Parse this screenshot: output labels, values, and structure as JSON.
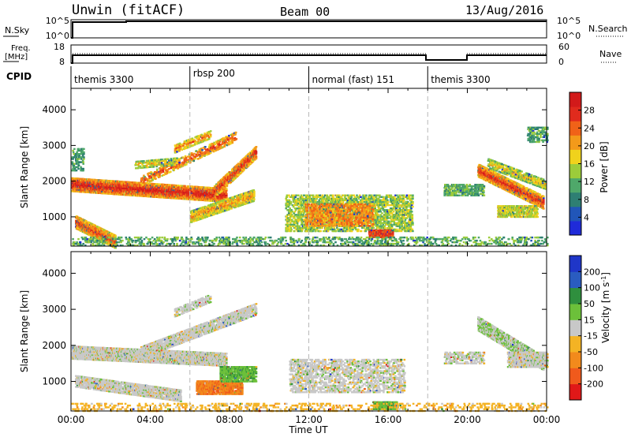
{
  "header": {
    "title": "Unwin (fitACF)",
    "beam": "Beam 00",
    "date": "13/Aug/2016"
  },
  "panels": {
    "nsky": {
      "label": "N.Sky",
      "ticks_left": [
        "10^5",
        "10^0"
      ],
      "ticks_right": [
        "10^5",
        "10^0"
      ],
      "right_label": "N.Search"
    },
    "freq": {
      "label_line1": "Freq.",
      "label_line2": "[MHz]",
      "ticks_left": [
        "18",
        "8"
      ],
      "ticks_right": [
        "60",
        "0"
      ],
      "right_label": "Nave"
    },
    "cpid": {
      "label": "CPID",
      "segments": [
        {
          "start_h": 0,
          "end_h": 6,
          "label": "themis 3300"
        },
        {
          "start_h": 6,
          "end_h": 12,
          "label": "rbsp 200"
        },
        {
          "start_h": 12,
          "end_h": 18,
          "label": "normal (fast) 151"
        },
        {
          "start_h": 18,
          "end_h": 24,
          "label": "themis 3300"
        }
      ]
    }
  },
  "chart_data": [
    {
      "type": "heatmap",
      "name": "Power",
      "ylabel": "Slant Range [km]",
      "ylim": [
        180,
        4600
      ],
      "yticks": [
        1000,
        2000,
        3000,
        4000
      ],
      "xlim": [
        0,
        24
      ],
      "colorbar": {
        "label": "Power [dB]",
        "ticks": [
          4,
          8,
          12,
          16,
          20,
          24,
          28
        ],
        "range": [
          0,
          32
        ],
        "colors": [
          "#1f2bd9",
          "#2156b8",
          "#2e7f73",
          "#4fa86a",
          "#9ccc3a",
          "#f0d21c",
          "#f39a1a",
          "#f06218",
          "#e02b1d",
          "#d21a1a"
        ]
      },
      "features": [
        {
          "kind": "band",
          "t0": 0.0,
          "t1": 7.8,
          "r0": 1900,
          "r1": 1600,
          "w": 180,
          "lvl": 0.95,
          "density": 0.85
        },
        {
          "kind": "band",
          "t0": 7.2,
          "t1": 9.3,
          "r0": 1700,
          "r1": 2800,
          "w": 160,
          "lvl": 0.9,
          "density": 0.7
        },
        {
          "kind": "band",
          "t0": 3.5,
          "t1": 8.3,
          "r0": 2000,
          "r1": 3250,
          "w": 120,
          "lvl": 0.85,
          "density": 0.35
        },
        {
          "kind": "band",
          "t0": 5.2,
          "t1": 7.0,
          "r0": 2900,
          "r1": 3300,
          "w": 100,
          "lvl": 0.75,
          "density": 0.45
        },
        {
          "kind": "band",
          "t0": 3.2,
          "t1": 5.3,
          "r0": 2450,
          "r1": 2550,
          "w": 90,
          "lvl": 0.6,
          "density": 0.45
        },
        {
          "kind": "band",
          "t0": 0.2,
          "t1": 2.2,
          "r0": 850,
          "r1": 300,
          "w": 170,
          "lvl": 0.85,
          "density": 0.8
        },
        {
          "kind": "band",
          "t0": 6.0,
          "t1": 9.2,
          "r0": 1000,
          "r1": 1600,
          "w": 150,
          "lvl": 0.7,
          "density": 0.65
        },
        {
          "kind": "blob",
          "t0": 10.8,
          "t1": 17.2,
          "r0": 600,
          "r1": 1600,
          "lvl": 0.45,
          "density": 0.35
        },
        {
          "kind": "blob",
          "t0": 11.8,
          "t1": 15.2,
          "r0": 750,
          "r1": 1350,
          "lvl": 0.7,
          "density": 0.45
        },
        {
          "kind": "blob",
          "t0": 15.0,
          "t1": 16.2,
          "r0": 430,
          "r1": 620,
          "lvl": 0.85,
          "density": 0.8
        },
        {
          "kind": "blob",
          "t0": 0.0,
          "t1": 24.0,
          "r0": 200,
          "r1": 420,
          "lvl": 0.35,
          "density": 0.18
        },
        {
          "kind": "blob",
          "t0": 0.0,
          "t1": 0.6,
          "r0": 2300,
          "r1": 2900,
          "lvl": 0.3,
          "density": 0.25
        },
        {
          "kind": "band",
          "t0": 20.5,
          "t1": 23.8,
          "r0": 2300,
          "r1": 1400,
          "w": 170,
          "lvl": 0.9,
          "density": 0.75
        },
        {
          "kind": "band",
          "t0": 21.0,
          "t1": 23.9,
          "r0": 2500,
          "r1": 1900,
          "w": 120,
          "lvl": 0.6,
          "density": 0.5
        },
        {
          "kind": "blob",
          "t0": 18.8,
          "t1": 20.8,
          "r0": 1600,
          "r1": 1900,
          "lvl": 0.35,
          "density": 0.4
        },
        {
          "kind": "blob",
          "t0": 21.5,
          "t1": 23.5,
          "r0": 1000,
          "r1": 1300,
          "lvl": 0.5,
          "density": 0.55
        },
        {
          "kind": "blob",
          "t0": 23.0,
          "t1": 24.0,
          "r0": 3100,
          "r1": 3500,
          "lvl": 0.3,
          "density": 0.3
        }
      ]
    },
    {
      "type": "heatmap",
      "name": "Velocity",
      "ylabel": "Slant Range [km]",
      "xlabel": "Time UT",
      "ylim": [
        180,
        4600
      ],
      "yticks": [
        1000,
        2000,
        3000,
        4000
      ],
      "xlim": [
        0,
        24
      ],
      "xticks": [
        "00:00",
        "04:00",
        "08:00",
        "12:00",
        "16:00",
        "20:00",
        "00:00"
      ],
      "colorbar": {
        "label": "Velocity [m s^-1]",
        "ticks": [
          "200",
          "100",
          "50",
          "15",
          "-15",
          "-50",
          "-100",
          "-200"
        ],
        "colors": [
          "#1f36c8",
          "#2a5cc0",
          "#2f8f3e",
          "#6cc03a",
          "#c8c8c8",
          "#f4b324",
          "#f28a1c",
          "#f05a1c",
          "#e01818"
        ]
      },
      "features": [
        {
          "kind": "band",
          "t0": 0.0,
          "t1": 7.8,
          "r0": 1800,
          "r1": 1600,
          "w": 170,
          "lvl": 0.5,
          "density": 0.8
        },
        {
          "kind": "band",
          "t0": 3.5,
          "t1": 9.3,
          "r0": 1800,
          "r1": 3000,
          "w": 150,
          "lvl": 0.5,
          "density": 0.55
        },
        {
          "kind": "band",
          "t0": 0.2,
          "t1": 5.5,
          "r0": 1000,
          "r1": 600,
          "w": 150,
          "lvl": 0.5,
          "density": 0.6
        },
        {
          "kind": "band",
          "t0": 5.2,
          "t1": 7.0,
          "r0": 2900,
          "r1": 3300,
          "w": 100,
          "lvl": 0.5,
          "density": 0.45
        },
        {
          "kind": "blob",
          "t0": 6.3,
          "t1": 8.6,
          "r0": 650,
          "r1": 1000,
          "lvl": 0.78,
          "density": 0.7
        },
        {
          "kind": "blob",
          "t0": 7.5,
          "t1": 9.3,
          "r0": 1000,
          "r1": 1400,
          "lvl": 0.35,
          "density": 0.55
        },
        {
          "kind": "blob",
          "t0": 11.0,
          "t1": 16.8,
          "r0": 700,
          "r1": 1600,
          "lvl": 0.5,
          "density": 0.3
        },
        {
          "kind": "blob",
          "t0": 15.2,
          "t1": 16.4,
          "r0": 230,
          "r1": 420,
          "lvl": 0.35,
          "density": 0.75
        },
        {
          "kind": "blob",
          "t0": 0.0,
          "t1": 24.0,
          "r0": 180,
          "r1": 380,
          "lvl": 0.62,
          "density": 0.15
        },
        {
          "kind": "band",
          "t0": 20.5,
          "t1": 23.8,
          "r0": 2600,
          "r1": 1500,
          "w": 180,
          "lvl": 0.45,
          "density": 0.6
        },
        {
          "kind": "blob",
          "t0": 22.0,
          "t1": 24.0,
          "r0": 1400,
          "r1": 1800,
          "lvl": 0.5,
          "density": 0.6
        },
        {
          "kind": "blob",
          "t0": 18.8,
          "t1": 20.8,
          "r0": 1500,
          "r1": 1800,
          "lvl": 0.5,
          "density": 0.35
        }
      ]
    }
  ]
}
